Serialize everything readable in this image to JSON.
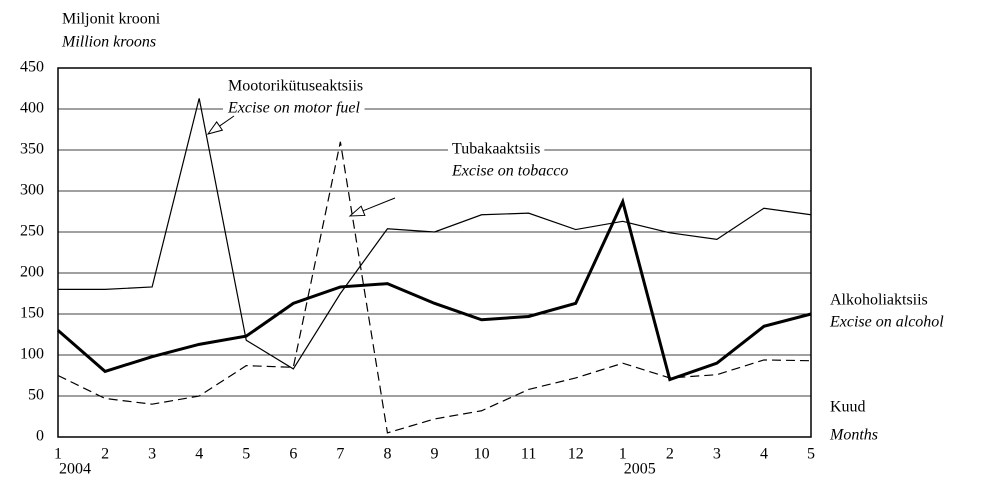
{
  "chart_data": {
    "type": "line",
    "y_label": "Miljonit krooni",
    "y_label_en": "Million kroons",
    "x_label": "Kuud",
    "x_label_en": "Months",
    "categories": [
      "1",
      "2",
      "3",
      "4",
      "5",
      "6",
      "7",
      "8",
      "9",
      "10",
      "11",
      "12",
      "1",
      "2",
      "3",
      "4",
      "5"
    ],
    "year_labels": [
      "2004",
      null,
      null,
      null,
      null,
      null,
      null,
      null,
      null,
      null,
      null,
      null,
      "2005",
      null,
      null,
      null,
      null
    ],
    "ylim": [
      0,
      450
    ],
    "yticks": [
      0,
      50,
      100,
      150,
      200,
      250,
      300,
      350,
      400,
      450
    ],
    "grid": true,
    "series": [
      {
        "name": "Mootorikütuseaktsiis",
        "name_en": "Excise on motor fuel",
        "color": "#000",
        "style": "thin",
        "values": [
          180,
          180,
          183,
          413,
          118,
          83,
          175,
          254,
          250,
          271,
          273,
          253,
          263,
          249,
          241,
          279,
          271
        ]
      },
      {
        "name": "Tubakaaktsiis",
        "name_en": "Excise on tobacco",
        "color": "#000",
        "style": "dashed",
        "values": [
          75,
          47,
          40,
          50,
          87,
          85,
          360,
          5,
          22,
          32,
          58,
          72,
          90,
          72,
          76,
          94,
          93
        ]
      },
      {
        "name": "Alkoholiaktsiis",
        "name_en": "Excise on alcohol",
        "color": "#000",
        "style": "bold",
        "values": [
          130,
          80,
          98,
          113,
          123,
          163,
          183,
          187,
          163,
          143,
          147,
          163,
          287,
          70,
          90,
          135,
          150
        ]
      }
    ]
  }
}
